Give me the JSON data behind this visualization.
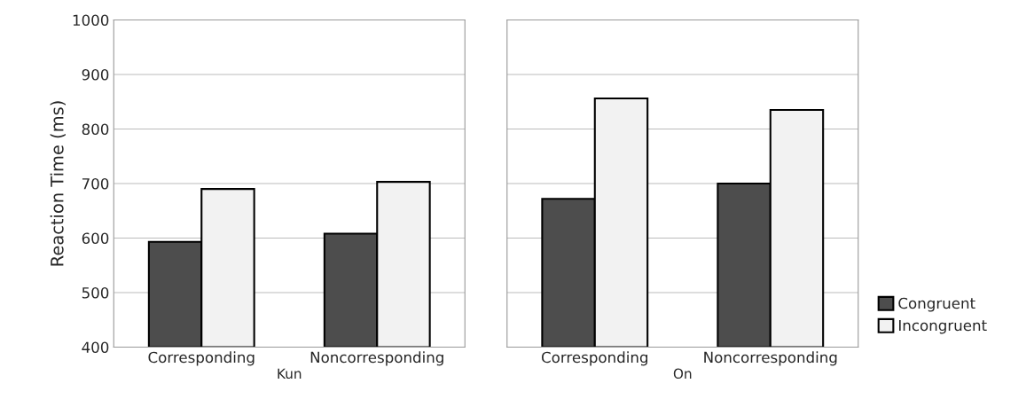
{
  "chart_data": [
    {
      "type": "bar",
      "xlabel": "Kun",
      "ylabel": "Reaction Time (ms)",
      "categories": [
        "Corresponding",
        "Noncorresponding"
      ],
      "series": [
        {
          "color": "#4d4d4d",
          "values": [
            593,
            608
          ]
        },
        {
          "color": "#f2f2f2",
          "values": [
            690,
            703
          ]
        }
      ],
      "ylim": [
        400,
        1000
      ],
      "yticks": [
        400,
        500,
        600,
        700,
        800,
        900,
        1000
      ],
      "grid": "y"
    },
    {
      "type": "bar",
      "xlabel": "On",
      "categories": [
        "Corresponding",
        "Noncorresponding"
      ],
      "series": [
        {
          "name": "Congruent",
          "color": "#4d4d4d",
          "values": [
            672,
            700
          ]
        },
        {
          "name": "Incongruent",
          "color": "#f2f2f2",
          "values": [
            856,
            835
          ]
        }
      ],
      "ylim": [
        400,
        1000
      ],
      "yticks": [
        400,
        500,
        600,
        700,
        800,
        900,
        1000
      ],
      "grid": "y",
      "tick_labels": "x",
      "legend": "bottom right"
    }
  ]
}
